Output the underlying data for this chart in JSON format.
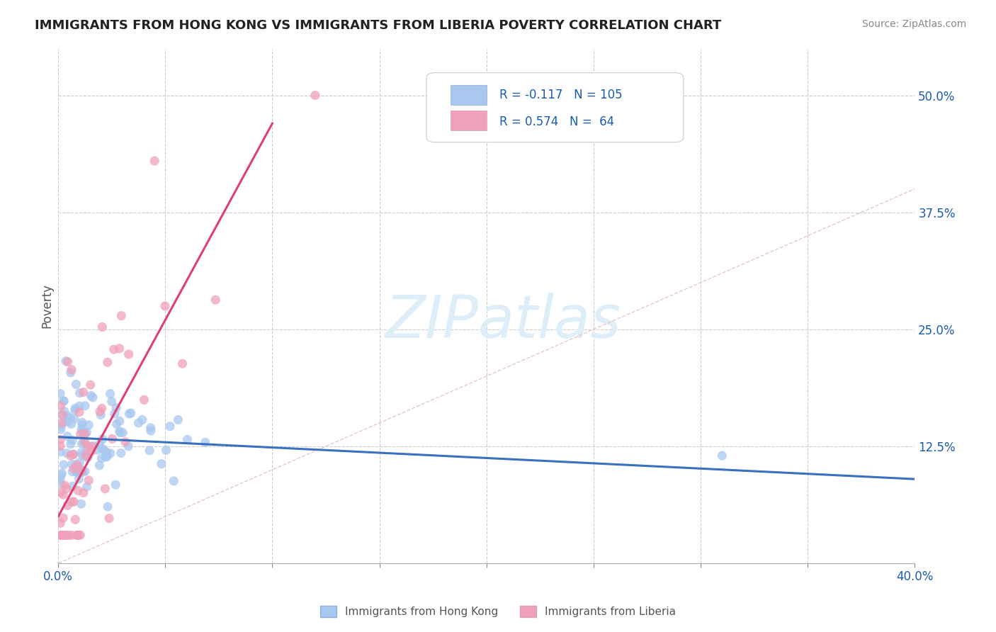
{
  "title": "IMMIGRANTS FROM HONG KONG VS IMMIGRANTS FROM LIBERIA POVERTY CORRELATION CHART",
  "source_text": "Source: ZipAtlas.com",
  "ylabel": "Poverty",
  "xlim": [
    0.0,
    0.4
  ],
  "ylim": [
    0.0,
    0.55
  ],
  "ytick_labels_right": [
    "50.0%",
    "37.5%",
    "25.0%",
    "12.5%"
  ],
  "ytick_positions_right": [
    0.5,
    0.375,
    0.25,
    0.125
  ],
  "hk_color": "#a8c8f0",
  "liberia_color": "#f0a0b8",
  "hk_line_color": "#3a70c0",
  "liberia_line_color": "#e04070",
  "diagonal_color": "#e8c0c8",
  "R_hk": -0.117,
  "N_hk": 105,
  "R_liberia": 0.574,
  "N_liberia": 64,
  "watermark_color": "#ddeef8",
  "background_color": "#ffffff",
  "legend_text_color": "#1a5cb0",
  "hk_line_x0": 0.0,
  "hk_line_y0": 0.135,
  "hk_line_x1": 0.4,
  "hk_line_y1": 0.09,
  "lib_line_x0": 0.0,
  "lib_line_y0": 0.05,
  "lib_line_x1": 0.1,
  "lib_line_y1": 0.47
}
